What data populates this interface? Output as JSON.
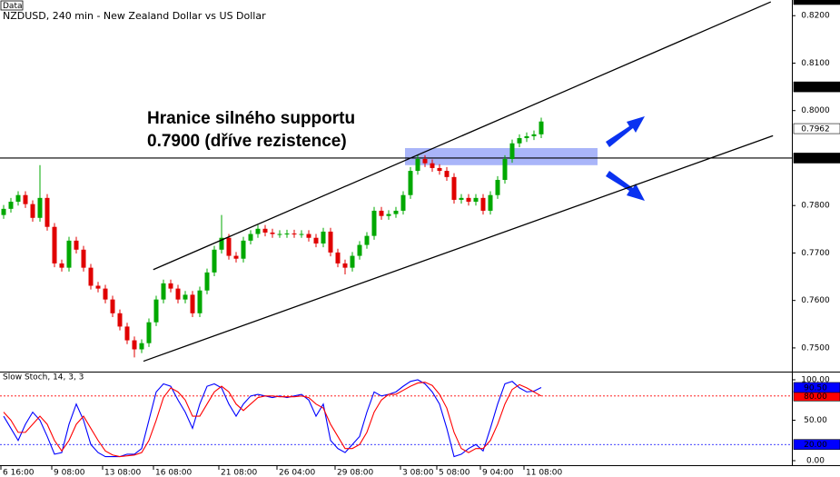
{
  "chart_data": [
    {
      "type": "candlestick",
      "badge": "Data",
      "title": "NZDUSD, 240 min - New Zealand Dollar vs US Dollar",
      "annotation": [
        "Hranice silného supportu",
        "0.7900 (dříve rezistence)"
      ],
      "categories": [
        "6 16:00",
        null,
        null,
        null,
        null,
        null,
        null,
        "9 08:00",
        null,
        null,
        null,
        null,
        null,
        null,
        "13 08:00",
        null,
        null,
        null,
        null,
        null,
        null,
        "16 08:00",
        null,
        null,
        null,
        null,
        null,
        null,
        null,
        null,
        "21 08:00",
        null,
        null,
        null,
        null,
        null,
        null,
        null,
        "26 04:00",
        null,
        null,
        null,
        null,
        null,
        null,
        null,
        "29 08:00",
        null,
        null,
        null,
        null,
        null,
        null,
        null,
        null,
        "3 08:00",
        null,
        null,
        null,
        null,
        "5 08:00",
        null,
        null,
        null,
        null,
        null,
        "9 04:00",
        null,
        null,
        null,
        null,
        null,
        "11 08:00",
        null,
        null
      ],
      "open": [
        0.778,
        0.7793,
        0.7808,
        0.7822,
        0.7803,
        0.7774,
        0.7816,
        0.7755,
        0.7678,
        0.7669,
        0.7726,
        0.7707,
        0.7669,
        0.7631,
        0.7625,
        0.7602,
        0.7573,
        0.7545,
        0.7516,
        0.7497,
        0.751,
        0.7554,
        0.7602,
        0.7636,
        0.7625,
        0.7602,
        0.7612,
        0.7573,
        0.7621,
        0.7659,
        0.7707,
        0.7732,
        0.7694,
        0.7688,
        0.7726,
        0.774,
        0.7751,
        0.7743,
        0.774,
        0.774,
        0.7741,
        0.774,
        0.774,
        0.7732,
        0.772,
        0.7745,
        0.7701,
        0.7678,
        0.7669,
        0.7694,
        0.7717,
        0.7736,
        0.7789,
        0.7778,
        0.7782,
        0.7789,
        0.7822,
        0.7873,
        0.7898,
        0.7889,
        0.7879,
        0.7873,
        0.786,
        0.7812,
        0.7816,
        0.7808,
        0.7816,
        0.7789,
        0.7822,
        0.7854,
        0.7898,
        0.7931,
        0.7942,
        0.7946,
        0.795
      ],
      "high": [
        0.7801,
        0.7816,
        0.783,
        0.783,
        0.7811,
        0.7885,
        0.7824,
        0.7763,
        0.7686,
        0.7734,
        0.7734,
        0.7715,
        0.7677,
        0.7639,
        0.7633,
        0.761,
        0.7581,
        0.7553,
        0.7524,
        0.7518,
        0.7562,
        0.761,
        0.7644,
        0.7644,
        0.7633,
        0.762,
        0.762,
        0.7629,
        0.7667,
        0.7715,
        0.778,
        0.774,
        0.7702,
        0.7734,
        0.7748,
        0.7759,
        0.7759,
        0.7751,
        0.7748,
        0.7749,
        0.7749,
        0.7748,
        0.7748,
        0.774,
        0.7753,
        0.7753,
        0.7709,
        0.7686,
        0.7702,
        0.7725,
        0.7744,
        0.7797,
        0.7797,
        0.779,
        0.7797,
        0.783,
        0.7881,
        0.7906,
        0.7906,
        0.7897,
        0.7887,
        0.7881,
        0.7868,
        0.7824,
        0.7824,
        0.7824,
        0.7824,
        0.783,
        0.7862,
        0.7906,
        0.7939,
        0.795,
        0.7954,
        0.7958,
        0.7985
      ],
      "low": [
        0.7772,
        0.7785,
        0.78,
        0.7795,
        0.7766,
        0.7766,
        0.7747,
        0.767,
        0.7661,
        0.7661,
        0.7699,
        0.7661,
        0.7623,
        0.7617,
        0.7594,
        0.7565,
        0.7537,
        0.7508,
        0.748,
        0.7489,
        0.7502,
        0.7546,
        0.7594,
        0.7617,
        0.7594,
        0.7594,
        0.7565,
        0.7565,
        0.7613,
        0.7651,
        0.7699,
        0.7686,
        0.768,
        0.768,
        0.7718,
        0.7732,
        0.7735,
        0.7732,
        0.7732,
        0.7732,
        0.7732,
        0.7732,
        0.7724,
        0.7712,
        0.7712,
        0.7693,
        0.767,
        0.7655,
        0.7661,
        0.7686,
        0.7709,
        0.7728,
        0.777,
        0.777,
        0.7774,
        0.7781,
        0.7814,
        0.7865,
        0.7881,
        0.7871,
        0.7865,
        0.7852,
        0.7804,
        0.7804,
        0.78,
        0.78,
        0.7781,
        0.7781,
        0.7814,
        0.7846,
        0.789,
        0.7923,
        0.7934,
        0.7938,
        0.7942
      ],
      "close": [
        0.7793,
        0.7808,
        0.7822,
        0.7803,
        0.7774,
        0.7816,
        0.7755,
        0.7678,
        0.7669,
        0.7726,
        0.7707,
        0.7669,
        0.7631,
        0.7625,
        0.7602,
        0.7573,
        0.7545,
        0.7516,
        0.7497,
        0.751,
        0.7554,
        0.7602,
        0.7636,
        0.7625,
        0.7602,
        0.7612,
        0.7573,
        0.7621,
        0.7659,
        0.7707,
        0.7732,
        0.7694,
        0.7688,
        0.7726,
        0.774,
        0.7751,
        0.7743,
        0.774,
        0.774,
        0.7741,
        0.774,
        0.774,
        0.7732,
        0.772,
        0.7745,
        0.7701,
        0.7678,
        0.7669,
        0.7694,
        0.7717,
        0.7736,
        0.7789,
        0.7778,
        0.7782,
        0.7789,
        0.7822,
        0.7873,
        0.7898,
        0.7889,
        0.7879,
        0.7873,
        0.786,
        0.7812,
        0.7816,
        0.7808,
        0.7816,
        0.7789,
        0.7822,
        0.7854,
        0.7898,
        0.7931,
        0.7942,
        0.7946,
        0.795,
        0.7977
      ],
      "up_color": "#00a800",
      "down_color": "#e00000",
      "ylim": [
        0.7452,
        0.8233
      ],
      "yticks": [
        {
          "value": 0.82,
          "label": "0.8200"
        },
        {
          "value": 0.81,
          "label": "0.8100"
        },
        {
          "value": 0.8,
          "label": "0.8000"
        },
        {
          "value": 0.78,
          "label": "0.7800"
        },
        {
          "value": 0.77,
          "label": "0.7700"
        },
        {
          "value": 0.76,
          "label": "0.7600"
        },
        {
          "value": 0.75,
          "label": "0.7500"
        }
      ],
      "horizontal_line": {
        "value": 0.79,
        "label": "0.7900",
        "color": "#000000"
      },
      "price_markers": [
        {
          "value": 0.8234,
          "label": "0.8234",
          "color": "#000000"
        },
        {
          "value": 0.805,
          "label": "0.8050",
          "color": "#000000"
        },
        {
          "value": 0.7962,
          "label": "0.7962",
          "color": "#ffffff"
        }
      ],
      "channel_lines": [
        {
          "x": [
            20.6,
            105.6
          ],
          "y": [
            0.7665,
            0.8229
          ]
        },
        {
          "x": [
            19.25,
            105.9
          ],
          "y": [
            0.7472,
            0.7947
          ]
        }
      ],
      "zone": {
        "x": [
          55.25,
          81.75
        ],
        "y": [
          0.7885,
          0.7921
        ],
        "color": "#9aa8f8"
      }
    },
    {
      "type": "line",
      "title": "Slow Stoch, 14, 3, 3",
      "series": [
        {
          "name": "%K",
          "color": "#0000ff",
          "values": [
            55,
            40,
            25,
            45,
            60,
            50,
            30,
            8,
            10,
            45,
            70,
            50,
            20,
            10,
            5,
            5,
            5,
            8,
            8,
            15,
            50,
            85,
            95,
            92,
            75,
            60,
            40,
            70,
            92,
            95,
            90,
            70,
            55,
            70,
            80,
            82,
            80,
            78,
            80,
            78,
            80,
            82,
            75,
            55,
            70,
            25,
            15,
            10,
            20,
            30,
            60,
            85,
            80,
            82,
            85,
            92,
            98,
            100,
            95,
            85,
            70,
            40,
            5,
            8,
            15,
            20,
            12,
            40,
            70,
            95,
            98,
            90,
            85,
            86,
            90.5
          ]
        },
        {
          "name": "%D",
          "color": "#ff0000",
          "values": [
            60,
            50,
            35,
            35,
            45,
            55,
            45,
            25,
            12,
            25,
            45,
            55,
            40,
            25,
            12,
            7,
            5,
            6,
            7,
            10,
            25,
            50,
            78,
            90,
            85,
            75,
            55,
            55,
            70,
            85,
            92,
            85,
            70,
            62,
            70,
            78,
            80,
            80,
            79,
            79,
            79,
            80,
            78,
            70,
            65,
            45,
            30,
            15,
            15,
            20,
            35,
            60,
            75,
            82,
            82,
            87,
            92,
            96,
            97,
            93,
            82,
            65,
            35,
            15,
            10,
            15,
            15,
            25,
            45,
            70,
            88,
            94,
            90,
            85,
            80
          ]
        }
      ],
      "ylim": [
        -5.6,
        109
      ],
      "yticks": [
        {
          "value": 100,
          "label": "100.00"
        },
        {
          "value": 50,
          "label": "50.00"
        },
        {
          "value": 0,
          "label": "0.00"
        }
      ],
      "levels": [
        {
          "value": 80,
          "label": "80.00",
          "color": "#ff0000"
        },
        {
          "value": 20,
          "label": "20.00",
          "color": "#0000ff"
        }
      ],
      "price_markers": [
        {
          "value": 90.5,
          "label": "90.50",
          "color": "#0000ff"
        }
      ]
    }
  ]
}
